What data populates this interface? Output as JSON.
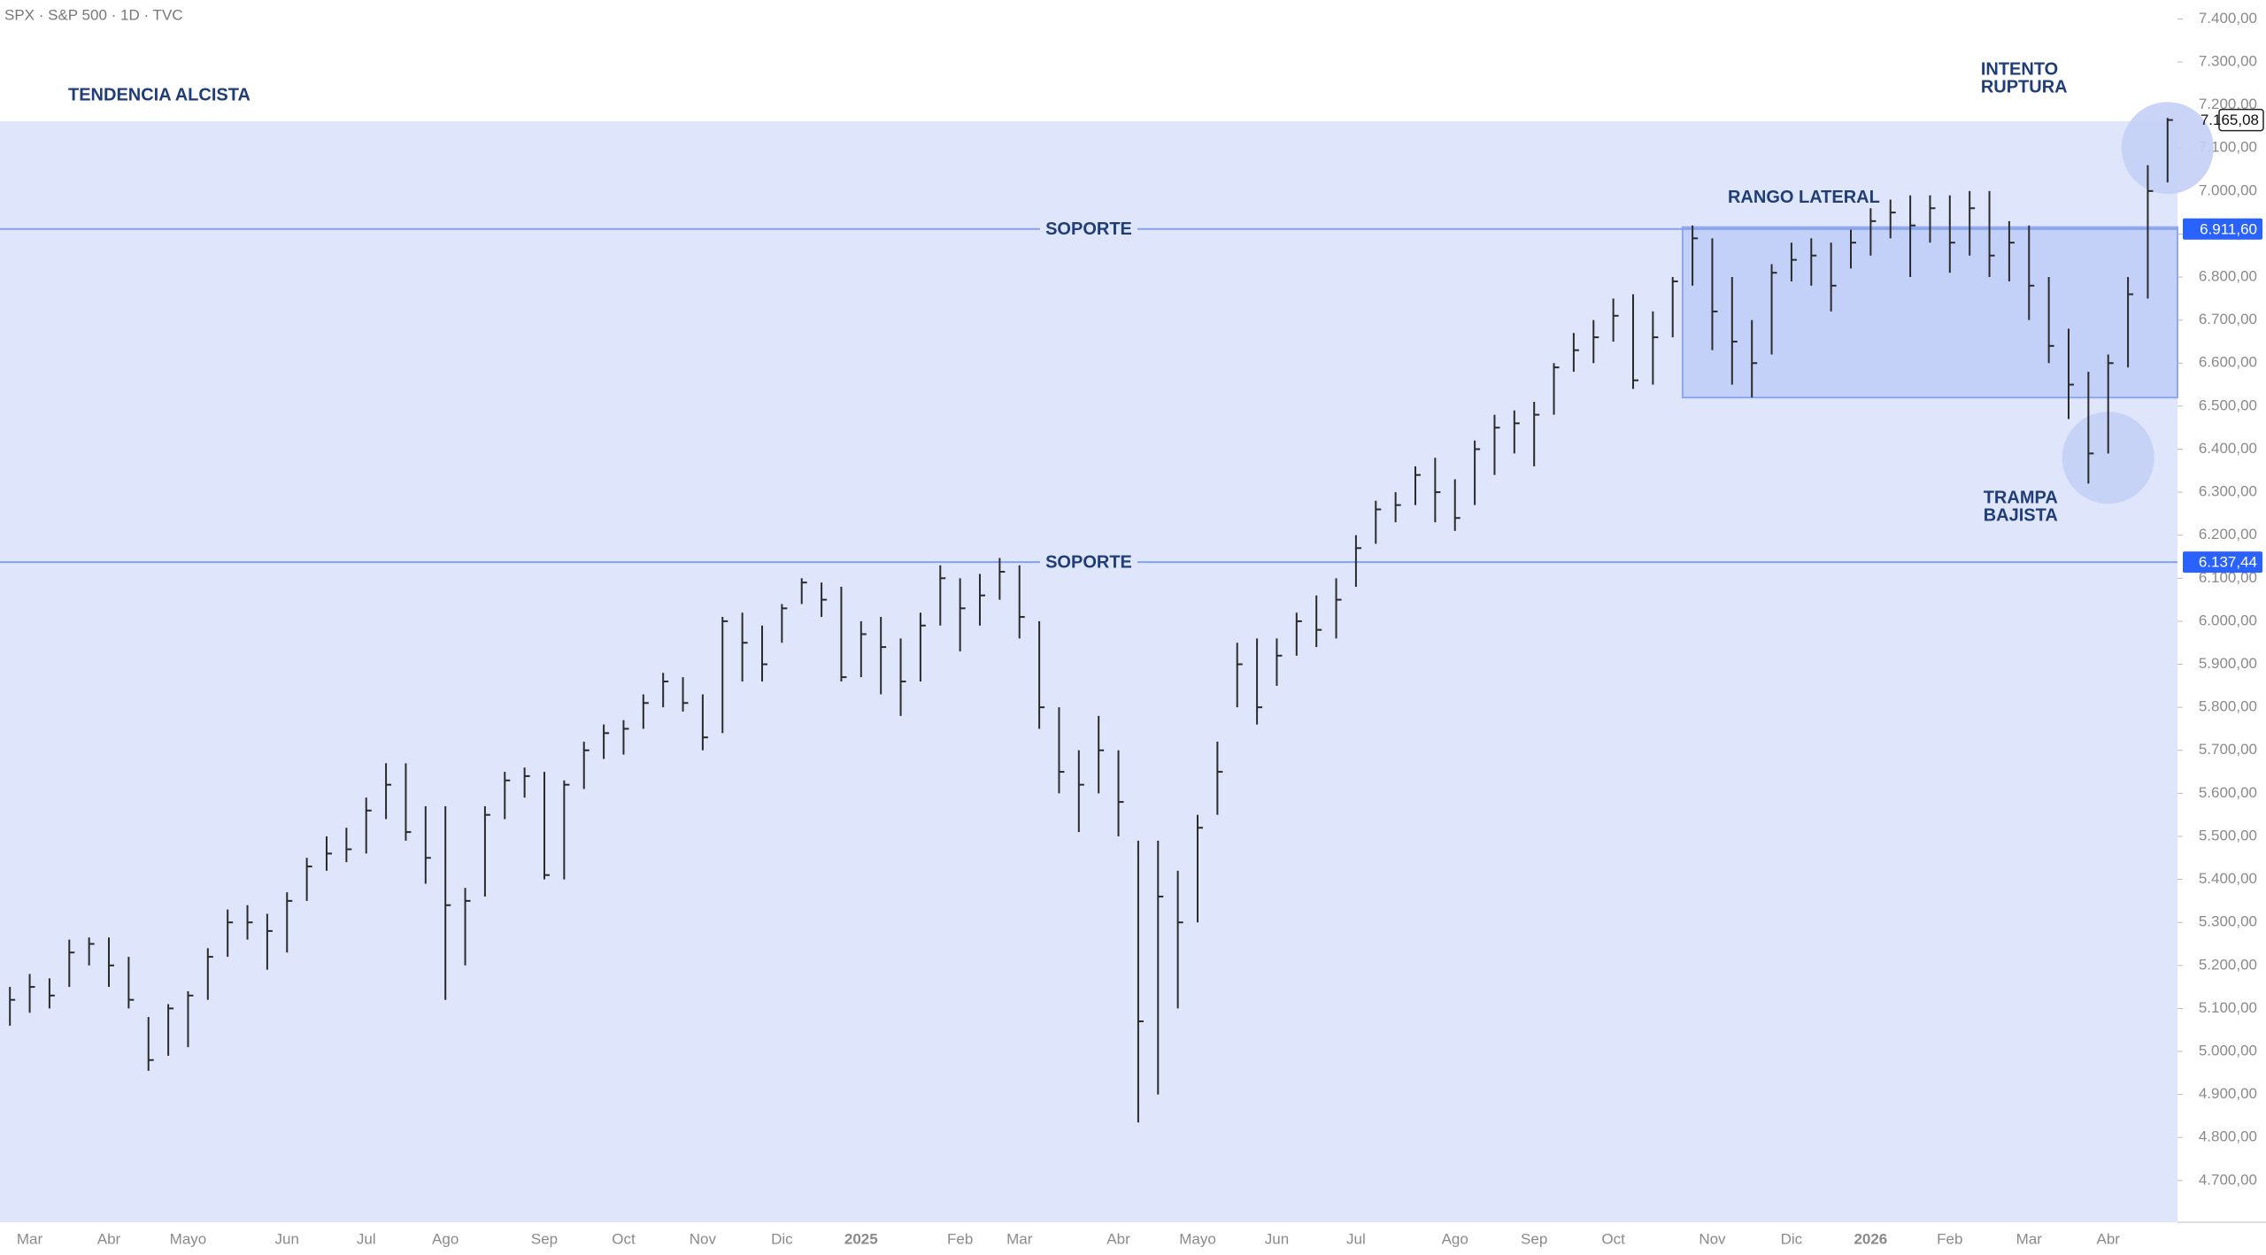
{
  "chart_data": {
    "type": "ohlc",
    "title": "SPX · S&P 500 · 1D · TVC",
    "categories": [
      null,
      "Mar",
      null,
      null,
      null,
      "Abr",
      null,
      null,
      null,
      "Mayo",
      null,
      null,
      null,
      null,
      "Jun",
      null,
      null,
      null,
      "Jul",
      null,
      null,
      null,
      "Ago",
      null,
      null,
      null,
      null,
      "Sep",
      null,
      null,
      null,
      "Oct",
      null,
      null,
      null,
      "Nov",
      null,
      null,
      null,
      "Dic",
      null,
      null,
      null,
      "2025",
      null,
      null,
      null,
      null,
      "Feb",
      null,
      null,
      "Mar",
      null,
      null,
      null,
      null,
      "Abr",
      null,
      null,
      null,
      "Mayo",
      null,
      null,
      null,
      "Jun",
      null,
      null,
      null,
      "Jul",
      null,
      null,
      null,
      null,
      "Ago",
      null,
      null,
      null,
      "Sep",
      null,
      null,
      null,
      "Oct",
      null,
      null,
      null,
      null,
      "Nov",
      null,
      null,
      null,
      "Dic",
      null,
      null,
      null,
      "2026",
      null,
      null,
      null,
      "Feb",
      null,
      null,
      null,
      "Mar",
      null,
      null,
      null,
      "Abr",
      null,
      null,
      null
    ],
    "high": [
      5150,
      5180,
      5170,
      5260,
      5265,
      5265,
      5220,
      5080,
      5110,
      5140,
      5240,
      5330,
      5340,
      5320,
      5370,
      5450,
      5500,
      5520,
      5590,
      5670,
      5670,
      5570,
      5570,
      5380,
      5570,
      5650,
      5660,
      5650,
      5630,
      5720,
      5760,
      5770,
      5830,
      5880,
      5870,
      5830,
      6010,
      6020,
      5990,
      6040,
      6100,
      6090,
      6080,
      6000,
      6010,
      5960,
      6020,
      6130,
      6100,
      6110,
      6147,
      6130,
      6000,
      5800,
      5700,
      5780,
      5700,
      5490,
      5490,
      5420,
      5550,
      5720,
      5950,
      5960,
      5960,
      6020,
      6060,
      6100,
      6200,
      6280,
      6300,
      6360,
      6380,
      6330,
      6420,
      6480,
      6490,
      6510,
      6600,
      6670,
      6700,
      6750,
      6760,
      6720,
      6800,
      6920,
      6890,
      6800,
      6700,
      6830,
      6880,
      6890,
      6880,
      6910,
      6960,
      6980,
      6990,
      6990,
      6990,
      7000,
      7000,
      6930,
      6920,
      6800,
      6680,
      6580,
      6620,
      6800,
      7060,
      7170
    ],
    "low": [
      5060,
      5090,
      5100,
      5150,
      5200,
      5150,
      5100,
      4955,
      4990,
      5010,
      5120,
      5220,
      5260,
      5190,
      5230,
      5350,
      5420,
      5440,
      5460,
      5540,
      5490,
      5390,
      5120,
      5200,
      5360,
      5540,
      5590,
      5400,
      5400,
      5610,
      5680,
      5690,
      5750,
      5800,
      5790,
      5700,
      5740,
      5860,
      5860,
      5950,
      6040,
      6010,
      5860,
      5870,
      5830,
      5780,
      5860,
      5990,
      5930,
      5990,
      6050,
      5960,
      5750,
      5600,
      5510,
      5600,
      5500,
      4835,
      4900,
      5100,
      5300,
      5550,
      5800,
      5760,
      5850,
      5920,
      5940,
      5960,
      6080,
      6180,
      6230,
      6270,
      6230,
      6210,
      6270,
      6340,
      6390,
      6360,
      6480,
      6580,
      6600,
      6650,
      6540,
      6550,
      6660,
      6780,
      6630,
      6550,
      6520,
      6620,
      6790,
      6780,
      6720,
      6820,
      6850,
      6890,
      6800,
      6880,
      6810,
      6850,
      6800,
      6790,
      6700,
      6600,
      6470,
      6320,
      6390,
      6590,
      6750,
      7020
    ],
    "values": [
      5120,
      5150,
      5130,
      5230,
      5250,
      5200,
      5120,
      4980,
      5100,
      5130,
      5220,
      5300,
      5300,
      5280,
      5350,
      5430,
      5460,
      5470,
      5560,
      5620,
      5510,
      5450,
      5340,
      5350,
      5550,
      5630,
      5640,
      5410,
      5620,
      5700,
      5740,
      5750,
      5810,
      5860,
      5810,
      5730,
      6000,
      5950,
      5900,
      6030,
      6090,
      6050,
      5870,
      5970,
      5940,
      5860,
      5990,
      6100,
      6030,
      6060,
      6115,
      6010,
      5800,
      5650,
      5620,
      5700,
      5580,
      5070,
      5360,
      5300,
      5520,
      5650,
      5900,
      5800,
      5920,
      6000,
      5980,
      6050,
      6170,
      6260,
      6270,
      6340,
      6300,
      6240,
      6400,
      6450,
      6460,
      6480,
      6590,
      6630,
      6660,
      6710,
      6560,
      6660,
      6790,
      6890,
      6720,
      6650,
      6600,
      6810,
      6840,
      6850,
      6780,
      6880,
      6930,
      6950,
      6920,
      6960,
      6880,
      6960,
      6850,
      6880,
      6780,
      6640,
      6550,
      6390,
      6600,
      6760,
      7000,
      7165.08
    ],
    "color": "#2b2b2b",
    "ylim": [
      4603,
      7444
    ],
    "yticks": [
      {
        "value": 4700,
        "label": "4.700,00"
      },
      {
        "value": 4800,
        "label": "4.800,00"
      },
      {
        "value": 4900,
        "label": "4.900,00"
      },
      {
        "value": 5000,
        "label": "5.000,00"
      },
      {
        "value": 5100,
        "label": "5.100,00"
      },
      {
        "value": 5200,
        "label": "5.200,00"
      },
      {
        "value": 5300,
        "label": "5.300,00"
      },
      {
        "value": 5400,
        "label": "5.400,00"
      },
      {
        "value": 5500,
        "label": "5.500,00"
      },
      {
        "value": 5600,
        "label": "5.600,00"
      },
      {
        "value": 5700,
        "label": "5.700,00"
      },
      {
        "value": 5800,
        "label": "5.800,00"
      },
      {
        "value": 5900,
        "label": "5.900,00"
      },
      {
        "value": 6000,
        "label": "6.000,00"
      },
      {
        "value": 6100,
        "label": "6.100,00"
      },
      {
        "value": 6200,
        "label": "6.200,00"
      },
      {
        "value": 6300,
        "label": "6.300,00"
      },
      {
        "value": 6400,
        "label": "6.400,00"
      },
      {
        "value": 6500,
        "label": "6.500,00"
      },
      {
        "value": 6600,
        "label": "6.600,00"
      },
      {
        "value": 6700,
        "label": "6.700,00"
      },
      {
        "value": 6800,
        "label": "6.800,00"
      },
      {
        "value": 6900,
        "label": "6.900,00"
      },
      {
        "value": 7000,
        "label": "7.000,00"
      },
      {
        "value": 7100,
        "label": "7.100,00"
      },
      {
        "value": 7200,
        "label": "7.200,00"
      },
      {
        "value": 7300,
        "label": "7.300,00"
      },
      {
        "value": 7400,
        "label": "7.400,00"
      }
    ],
    "levels": [
      {
        "text": "SOPORTE",
        "value": 6911.6,
        "label": "6.911,60"
      },
      {
        "text": "SOPORTE",
        "value": 6137.44,
        "label": "6.137,44"
      }
    ],
    "last_price": {
      "value": 7165.08,
      "label": "7.165,08"
    },
    "range_box": {
      "text": "RANGO LATERAL",
      "from": 6520,
      "to": 6916,
      "start": 85
    },
    "annotations": [
      {
        "lines": [
          "TRAMPA",
          "BAJISTA"
        ],
        "at": 106,
        "value": 6380
      },
      {
        "lines": [
          "INTENTO",
          "RUPTURA"
        ],
        "at": 109,
        "value": 7100
      }
    ],
    "trend_label": "TENDENCIA ALCISTA"
  }
}
